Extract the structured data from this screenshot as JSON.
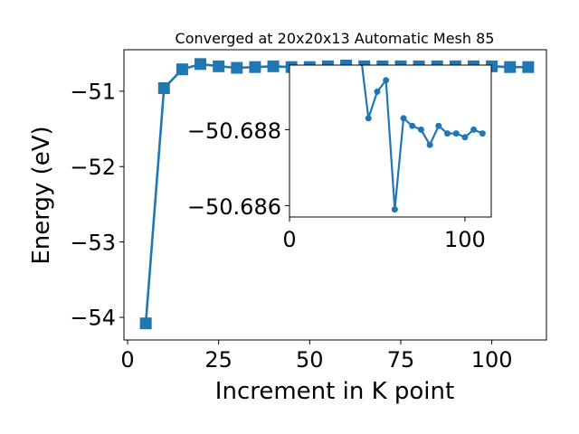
{
  "chart_data": [
    {
      "type": "line",
      "title": "Converged at 20x20x13 Automatic Mesh 85",
      "xlabel": "Increment in K point",
      "ylabel": "Energy (eV)",
      "xlim": [
        -1,
        115
      ],
      "ylim": [
        -54.3,
        -50.45
      ],
      "xticks": [
        0,
        25,
        50,
        75,
        100
      ],
      "yticks": [
        -54,
        -53,
        -52,
        -51
      ],
      "xtick_labels": [
        "0",
        "25",
        "50",
        "75",
        "100"
      ],
      "ytick_labels": [
        "−54",
        "−53",
        "−52",
        "−51"
      ],
      "grid": false,
      "marker": "square",
      "color": "#1f77b4",
      "x": [
        5,
        10,
        15,
        20,
        25,
        30,
        35,
        40,
        45,
        50,
        55,
        60,
        65,
        70,
        75,
        80,
        85,
        90,
        95,
        100,
        105,
        110
      ],
      "y": [
        -54.08,
        -50.96,
        -50.71,
        -50.64,
        -50.67,
        -50.69,
        -50.68,
        -50.67,
        -50.68,
        -50.68,
        -50.67,
        -50.66,
        -50.67,
        -50.67,
        -50.67,
        -50.67,
        -50.67,
        -50.67,
        -50.67,
        -50.67,
        -50.68,
        -50.68
      ]
    },
    {
      "type": "line",
      "title": "",
      "xlabel": "",
      "ylabel": "",
      "xlim": [
        0,
        115
      ],
      "ylim": [
        -50.6857,
        -50.6897
      ],
      "xticks": [
        0,
        100
      ],
      "yticks": [
        -50.688,
        -50.686
      ],
      "xtick_labels": [
        "0",
        "100"
      ],
      "ytick_labels": [
        "−50.688",
        "−50.686"
      ],
      "grid": false,
      "marker": "circle",
      "color": "#1f77b4",
      "x": [
        40,
        45,
        50,
        55,
        60,
        65,
        70,
        75,
        80,
        85,
        90,
        95,
        100,
        105,
        110
      ],
      "y": [
        -50.6902,
        -50.6883,
        -50.689,
        -50.6893,
        -50.6859,
        -50.6883,
        -50.6881,
        -50.688,
        -50.6876,
        -50.6881,
        -50.6879,
        -50.6879,
        -50.6878,
        -50.688,
        -50.6879
      ]
    }
  ]
}
